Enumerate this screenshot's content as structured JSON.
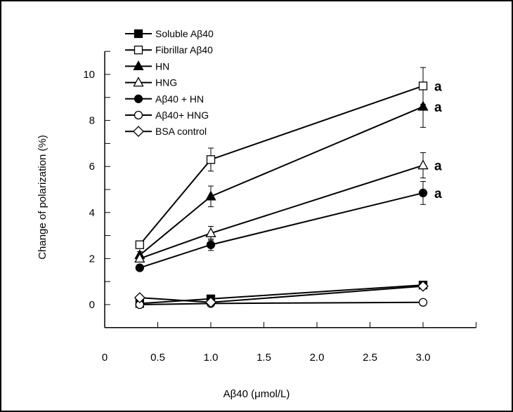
{
  "chart_data": {
    "type": "line",
    "xlabel": "Aβ40 (μmol/L)",
    "ylabel": "Change of polarization (%)",
    "xlim": [
      0,
      3.5
    ],
    "ylim": [
      -1,
      11
    ],
    "x_ticks": [
      0,
      0.5,
      1.0,
      1.5,
      2.0,
      2.5,
      3.0
    ],
    "x_tick_labels": [
      "0",
      "0.5",
      "1.0",
      "1.5",
      "2.0",
      "2.5",
      "3.0"
    ],
    "y_ticks": [
      0,
      2,
      4,
      6,
      8,
      10
    ],
    "y_tick_labels": [
      "0",
      "2",
      "4",
      "6",
      "8",
      "10"
    ],
    "grid": false,
    "legend_position": "top-left",
    "x": [
      0.33,
      1.0,
      3.0
    ],
    "series": [
      {
        "name": "Soluble Aβ40",
        "marker": "square-filled",
        "values": [
          0.05,
          0.25,
          0.85
        ],
        "errors": [
          0.05,
          0.05,
          0.1
        ]
      },
      {
        "name": "Fibrillar Aβ40",
        "marker": "square-open",
        "values": [
          2.6,
          6.3,
          9.5
        ],
        "errors": [
          0.15,
          0.5,
          0.8
        ]
      },
      {
        "name": "HN",
        "marker": "triangle-filled",
        "values": [
          2.15,
          4.7,
          8.6
        ],
        "errors": [
          0.15,
          0.45,
          0.9
        ]
      },
      {
        "name": "HNG",
        "marker": "triangle-open",
        "values": [
          2.0,
          3.1,
          6.05
        ],
        "errors": [
          0.1,
          0.3,
          0.55
        ]
      },
      {
        "name": "Aβ40 + HN",
        "marker": "circle-filled",
        "values": [
          1.6,
          2.6,
          4.85
        ],
        "errors": [
          0.08,
          0.25,
          0.5
        ]
      },
      {
        "name": "Aβ40+ HNG",
        "marker": "circle-open",
        "values": [
          0.0,
          0.05,
          0.1
        ],
        "errors": [
          0.03,
          0.03,
          0.03
        ]
      },
      {
        "name": "BSA control",
        "marker": "diamond-open",
        "values": [
          0.3,
          0.1,
          0.8
        ],
        "errors": [
          0.05,
          0.05,
          0.1
        ]
      }
    ],
    "annotations": [
      {
        "text": "a",
        "x": 3.0,
        "y": 9.5
      },
      {
        "text": "a",
        "x": 3.0,
        "y": 8.6
      },
      {
        "text": "a",
        "x": 3.0,
        "y": 6.05
      },
      {
        "text": "a",
        "x": 3.0,
        "y": 4.85
      }
    ]
  }
}
